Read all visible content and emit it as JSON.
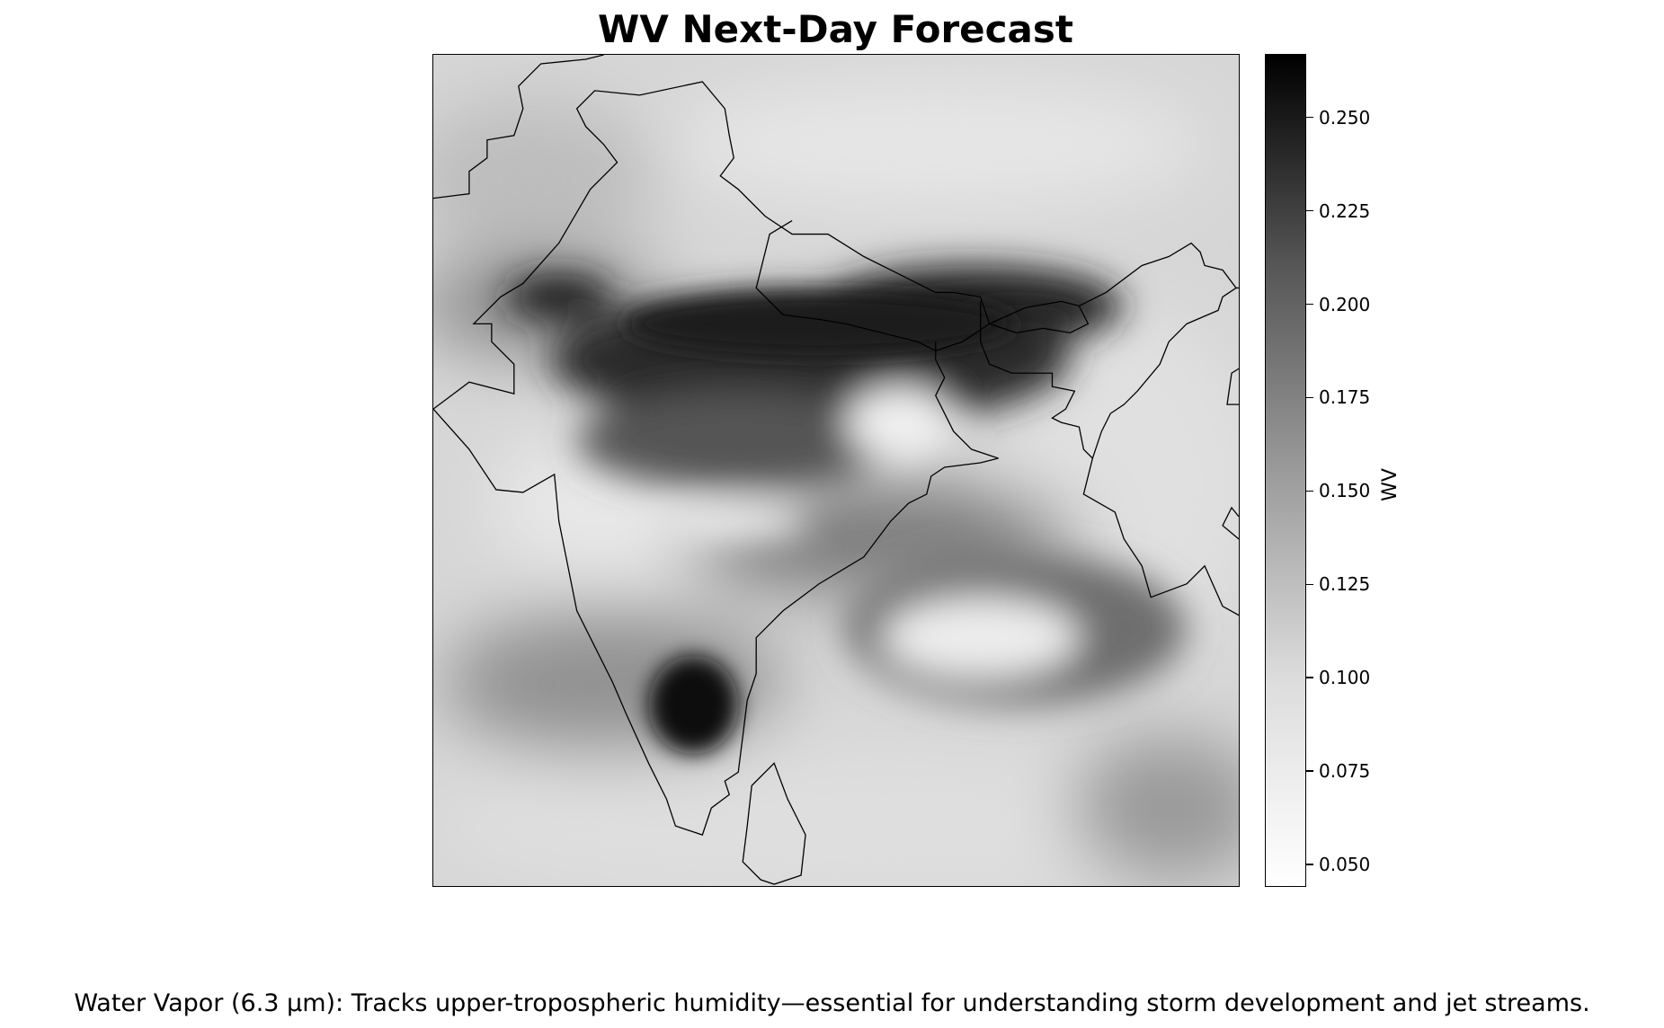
{
  "chart_data": {
    "type": "heatmap",
    "title": "WV Next-Day Forecast",
    "colorbar": {
      "label": "WV",
      "colormap": "greys",
      "range": [
        0.044,
        0.267
      ],
      "ticks": [
        "0.050",
        "0.075",
        "0.100",
        "0.125",
        "0.150",
        "0.175",
        "0.200",
        "0.225",
        "0.250"
      ]
    },
    "regions": [
      {
        "name": "northern-india-band",
        "value": 0.245
      },
      {
        "name": "western-pakistan",
        "value": 0.22
      },
      {
        "name": "southern-india-core",
        "value": 0.26
      },
      {
        "name": "bay-of-bengal-swirl",
        "value": 0.165
      },
      {
        "name": "central-dry-patch",
        "value": 0.07
      }
    ],
    "caption": "Water Vapor (6.3 μm): Tracks upper-tropospheric humidity—essential for understanding storm development and jet streams."
  },
  "colors": {
    "border": "#000000",
    "colorbar_min": "#ffffff",
    "colorbar_max": "#000000"
  }
}
